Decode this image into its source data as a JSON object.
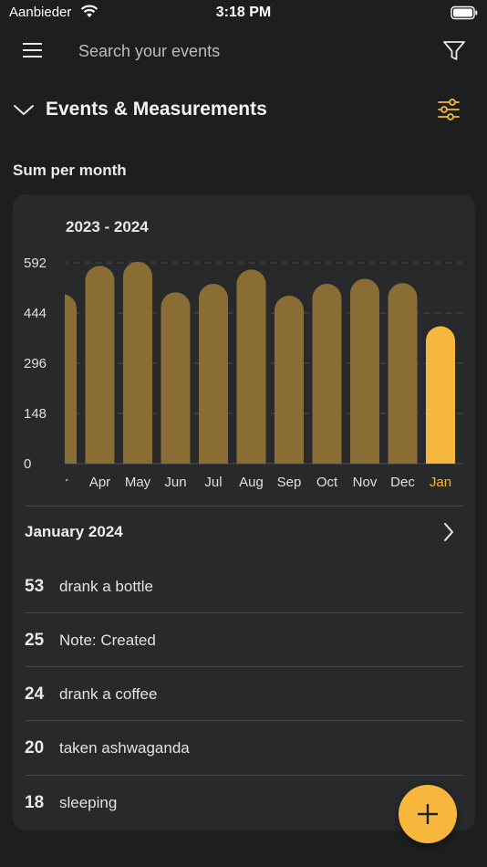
{
  "status_bar": {
    "carrier": "Aanbieder",
    "time": "3:18 PM"
  },
  "search": {
    "placeholder": "Search your events"
  },
  "section": {
    "title": "Events & Measurements"
  },
  "sum_label": "Sum per month",
  "chart_data": {
    "type": "bar",
    "title": "2023 - 2024",
    "categories": [
      "Mar",
      "Apr",
      "May",
      "Jun",
      "Jul",
      "Aug",
      "Sep",
      "Oct",
      "Nov",
      "Dec",
      "Jan"
    ],
    "visible_category_labels": [
      "ar",
      "Apr",
      "May",
      "Jun",
      "Jul",
      "Aug",
      "Sep",
      "Oct",
      "Nov",
      "Dec",
      "Jan"
    ],
    "values": [
      500,
      583,
      595,
      505,
      530,
      572,
      495,
      530,
      545,
      532,
      405
    ],
    "yticks": [
      "592",
      "444",
      "296",
      "148",
      "0"
    ],
    "ylim": [
      0,
      592
    ],
    "highlight_index": 10,
    "colors": {
      "bar": "#8a6d35",
      "highlight": "#f6b73c",
      "tick": "#e0e0e0",
      "grid": "#4d5053"
    }
  },
  "month": {
    "label": "January 2024"
  },
  "events": [
    {
      "count": "53",
      "name": "drank a bottle"
    },
    {
      "count": "25",
      "name": "Note: Created"
    },
    {
      "count": "24",
      "name": "drank a coffee"
    },
    {
      "count": "20",
      "name": "taken ashwaganda"
    },
    {
      "count": "18",
      "name": "sleeping"
    }
  ],
  "colors": {
    "accent": "#f6b73c",
    "background": "#1c1e20",
    "card": "#27292b"
  }
}
